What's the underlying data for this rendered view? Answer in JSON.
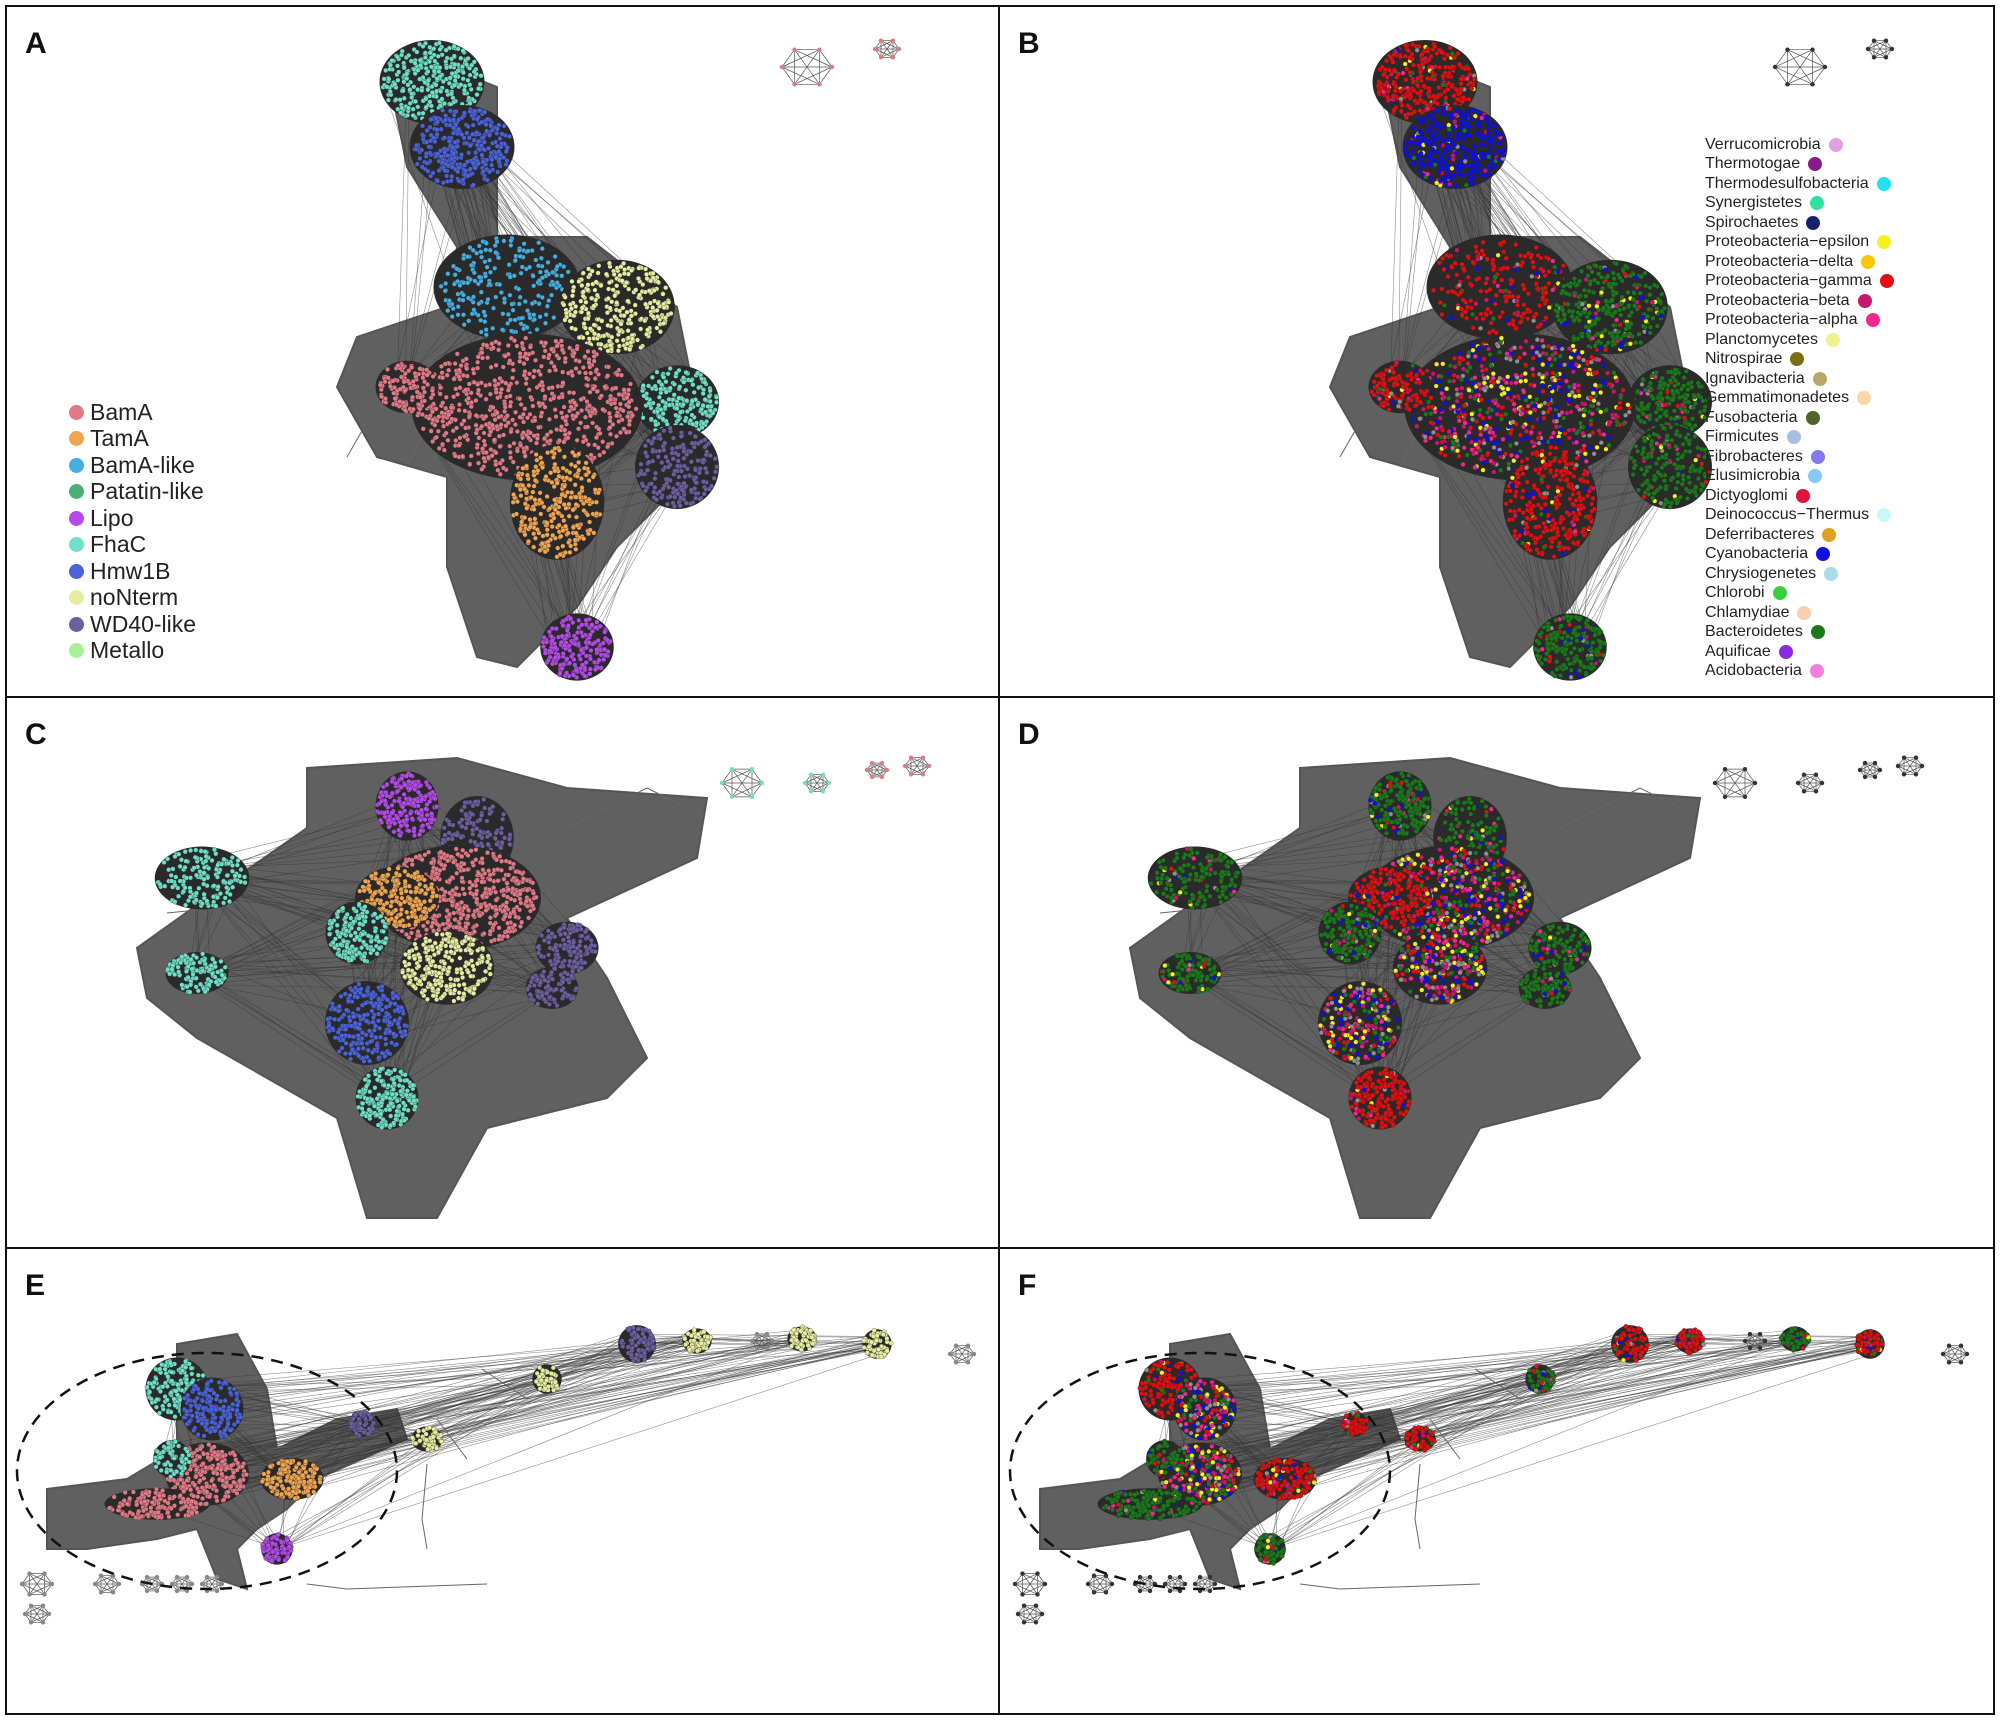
{
  "figure": {
    "panels": [
      {
        "label": "A",
        "coloring": "protein-family"
      },
      {
        "label": "B",
        "coloring": "phylum"
      },
      {
        "label": "C",
        "coloring": "protein-family"
      },
      {
        "label": "D",
        "coloring": "phylum"
      },
      {
        "label": "E",
        "coloring": "protein-family"
      },
      {
        "label": "F",
        "coloring": "phylum"
      }
    ],
    "family_legend": [
      {
        "label": "BamA",
        "color": "#e07a86"
      },
      {
        "label": "TamA",
        "color": "#f0a550"
      },
      {
        "label": "BamA-like",
        "color": "#45aee0"
      },
      {
        "label": "Patatin-like",
        "color": "#4caf78"
      },
      {
        "label": "Lipo",
        "color": "#b44be8"
      },
      {
        "label": "FhaC",
        "color": "#6fe0c8"
      },
      {
        "label": "Hmw1B",
        "color": "#4b62d8"
      },
      {
        "label": "noNterm",
        "color": "#e6eca0"
      },
      {
        "label": "WD40-like",
        "color": "#6b5fa0"
      },
      {
        "label": "Metallo",
        "color": "#a8f098"
      }
    ],
    "phylum_legend": [
      {
        "label": "Verrucomicrobia",
        "color": "#e2a0e0"
      },
      {
        "label": "Thermotogae",
        "color": "#8b1b8b"
      },
      {
        "label": "Thermodesulfobacteria",
        "color": "#22e0f0"
      },
      {
        "label": "Synergistetes",
        "color": "#30e0a0"
      },
      {
        "label": "Spirochaetes",
        "color": "#18206e"
      },
      {
        "label": "Proteobacteria−epsilon",
        "color": "#f6f020"
      },
      {
        "label": "Proteobacteria−delta",
        "color": "#f6c800"
      },
      {
        "label": "Proteobacteria−gamma",
        "color": "#e01010"
      },
      {
        "label": "Proteobacteria−beta",
        "color": "#c8186e"
      },
      {
        "label": "Proteobacteria−alpha",
        "color": "#f02890"
      },
      {
        "label": "Planctomycetes",
        "color": "#f0f090"
      },
      {
        "label": "Nitrospirae",
        "color": "#7a6e10"
      },
      {
        "label": "Ignavibacteria",
        "color": "#b8a868"
      },
      {
        "label": "Gemmatimonadetes",
        "color": "#f8d8a8"
      },
      {
        "label": "Fusobacteria",
        "color": "#4e6428"
      },
      {
        "label": "Firmicutes",
        "color": "#a8c0e0"
      },
      {
        "label": "Fibrobacteres",
        "color": "#8878f0"
      },
      {
        "label": "Elusimicrobia",
        "color": "#88c8f8"
      },
      {
        "label": "Dictyoglomi",
        "color": "#e01438"
      },
      {
        "label": "Deinococcus−Thermus",
        "color": "#c8f8f8"
      },
      {
        "label": "Deferribacteres",
        "color": "#e0a020"
      },
      {
        "label": "Cyanobacteria",
        "color": "#1010e0"
      },
      {
        "label": "Chrysiogenetes",
        "color": "#a8dce8"
      },
      {
        "label": "Chlorobi",
        "color": "#38d040"
      },
      {
        "label": "Chlamydiae",
        "color": "#f8d0b0"
      },
      {
        "label": "Bacteroidetes",
        "color": "#1a7a1a"
      },
      {
        "label": "Aquificae",
        "color": "#8a2be2"
      },
      {
        "label": "Acidobacteria",
        "color": "#f080e0"
      }
    ]
  }
}
